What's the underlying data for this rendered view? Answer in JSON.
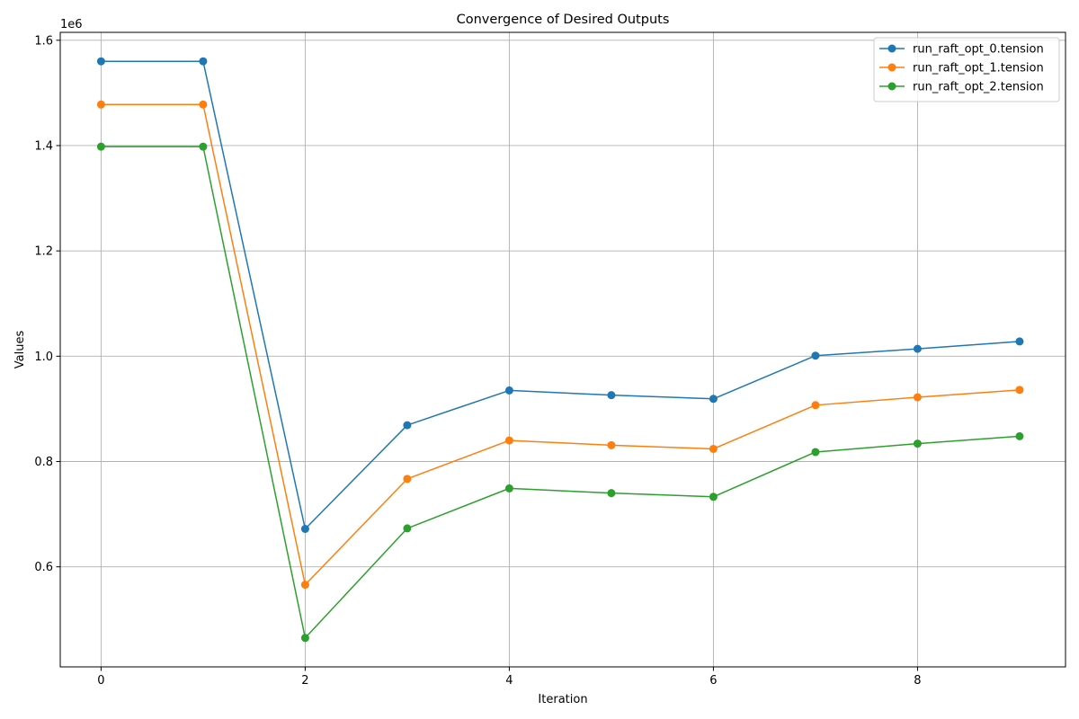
{
  "chart_data": {
    "type": "line",
    "title": "Convergence of Desired Outputs",
    "xlabel": "Iteration",
    "ylabel": "Values",
    "y_offset_label": "1e6",
    "x": [
      0,
      1,
      2,
      3,
      4,
      5,
      6,
      7,
      8,
      9
    ],
    "xlim": [
      -0.4,
      9.45
    ],
    "ylim": [
      410000,
      1615000
    ],
    "x_ticks": [
      0,
      2,
      4,
      6,
      8
    ],
    "y_ticks": [
      600000,
      800000,
      1000000,
      1200000,
      1400000,
      1600000
    ],
    "y_tick_labels": [
      "0.6",
      "0.8",
      "1.0",
      "1.2",
      "1.4",
      "1.6"
    ],
    "grid": true,
    "legend_position": "top-right",
    "series": [
      {
        "name": "run_raft_opt_0.tension",
        "color": "#1f77b4",
        "values": [
          1560000,
          1560000,
          672000,
          869000,
          935000,
          926000,
          919000,
          1001000,
          1014000,
          1028000
        ]
      },
      {
        "name": "run_raft_opt_1.tension",
        "color": "#ff7f0e",
        "values": [
          1478000,
          1478000,
          566000,
          767000,
          840000,
          831000,
          824000,
          907000,
          922000,
          936000
        ]
      },
      {
        "name": "run_raft_opt_2.tension",
        "color": "#2ca02c",
        "values": [
          1398000,
          1398000,
          465000,
          673000,
          749000,
          740000,
          733000,
          818000,
          834000,
          848000
        ]
      }
    ]
  }
}
